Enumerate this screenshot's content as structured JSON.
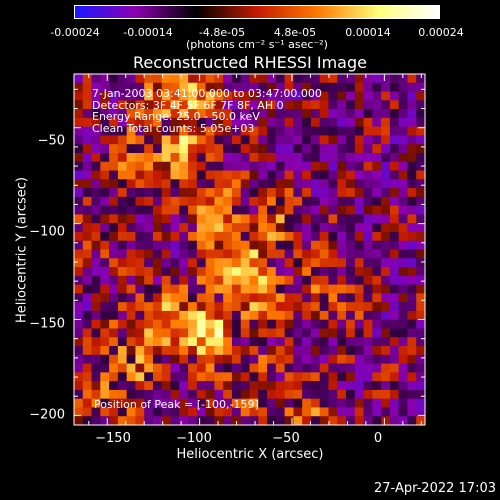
{
  "colorbar": {
    "ticks": [
      "-0.00024",
      "-0.00014",
      "-4.8e-05",
      "4.8e-05",
      "0.00014",
      "0.00024"
    ],
    "unit_label": "(photons cm⁻² s⁻¹ asec⁻²)",
    "range": [
      -0.00024,
      0.00024
    ],
    "colors": [
      "#1818ff",
      "#8b00b0",
      "#000000",
      "#c41a00",
      "#ff7a00",
      "#ffff7a",
      "#ffffff"
    ]
  },
  "title": "Reconstructed RHESSI Image",
  "info_lines": [
    "7-Jan-2003 03:41:00.000 to 03:47:00.000",
    "Detectors: 3F 4F 5F 6F 7F 8F, AH 0",
    "Energy Range: 25.0 - 50.0 keV",
    "Clean    Total counts: 5.05e+03"
  ],
  "peak_label": "Position of Peak = [-100,-159]",
  "timestamp": "27-Apr-2022 17:03",
  "chart_data": {
    "type": "heatmap",
    "title": "Reconstructed RHESSI Image",
    "xlabel": "Heliocentric X (arcsec)",
    "ylabel": "Heliocentric Y (arcsec)",
    "xlim": [
      -168,
      22
    ],
    "ylim": [
      -205,
      -22
    ],
    "xticks": [
      -150,
      -100,
      -50,
      0
    ],
    "xtick_labels": [
      "−150",
      "−100",
      "−50",
      "0"
    ],
    "yticks": [
      -50,
      -100,
      -150,
      -200
    ],
    "ytick_labels": [
      "−50",
      "−100",
      "−150",
      "−200"
    ],
    "peak_position": [
      -100,
      -159
    ],
    "bright_regions": [
      {
        "x": -110,
        "y": -35,
        "level": 0.85
      },
      {
        "x": -112,
        "y": -60,
        "level": 0.75
      },
      {
        "x": -128,
        "y": -70,
        "level": 0.55
      },
      {
        "x": -90,
        "y": -95,
        "level": 0.6
      },
      {
        "x": -82,
        "y": -123,
        "level": 0.95
      },
      {
        "x": -70,
        "y": -135,
        "level": 0.7
      },
      {
        "x": -100,
        "y": -155,
        "level": 1.0
      },
      {
        "x": -120,
        "y": -150,
        "level": 0.7
      },
      {
        "x": -135,
        "y": -170,
        "level": 0.6
      },
      {
        "x": -60,
        "y": -105,
        "level": 0.55
      },
      {
        "x": -75,
        "y": -180,
        "level": 0.45
      },
      {
        "x": -45,
        "y": -195,
        "level": 0.4
      },
      {
        "x": -150,
        "y": -190,
        "level": 0.5
      },
      {
        "x": -30,
        "y": -135,
        "level": 0.4
      },
      {
        "x": -155,
        "y": -110,
        "level": 0.3
      }
    ]
  }
}
